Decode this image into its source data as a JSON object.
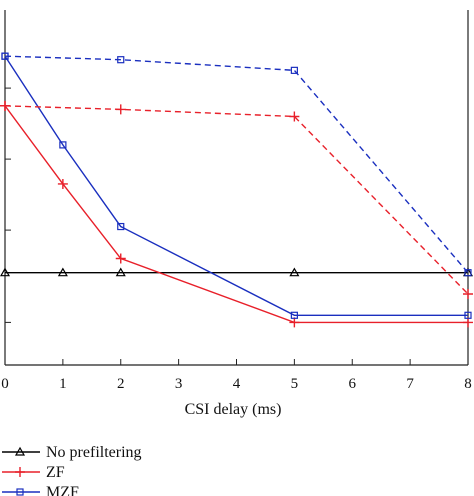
{
  "chart_data": {
    "type": "line",
    "xlabel": "CSI delay (ms)",
    "ylabel": "",
    "title": "",
    "x_ticks": [
      0,
      1,
      2,
      3,
      4,
      5,
      6,
      7,
      8
    ],
    "xlim": [
      0,
      8
    ],
    "ylim": [
      0,
      100
    ],
    "y_tick_values": [
      12,
      38,
      58,
      78
    ],
    "series": [
      {
        "name": "No prefiltering",
        "color": "#000000",
        "marker": "triangle",
        "dash": "solid",
        "points": [
          [
            0,
            26
          ],
          [
            1,
            26
          ],
          [
            2,
            26
          ],
          [
            5,
            26
          ],
          [
            8,
            26
          ]
        ]
      },
      {
        "name": "ZF",
        "color": "#e8202a",
        "marker": "plus",
        "dash": "solid",
        "points": [
          [
            0,
            73
          ],
          [
            1,
            51
          ],
          [
            2,
            30
          ],
          [
            5,
            12
          ],
          [
            8,
            12
          ]
        ]
      },
      {
        "name": "MZF",
        "color": "#1a2fbf",
        "marker": "square",
        "dash": "solid",
        "points": [
          [
            0,
            87
          ],
          [
            1,
            62
          ],
          [
            2,
            39
          ],
          [
            5,
            14
          ],
          [
            8,
            14
          ]
        ]
      },
      {
        "name": "",
        "color": "#e8202a",
        "marker": "plus",
        "dash": "dashed",
        "points": [
          [
            0,
            73
          ],
          [
            2,
            72
          ],
          [
            5,
            70
          ],
          [
            8,
            20
          ]
        ]
      },
      {
        "name": "",
        "color": "#1a2fbf",
        "marker": "square",
        "dash": "dashed",
        "points": [
          [
            0,
            87
          ],
          [
            2,
            86
          ],
          [
            5,
            83
          ],
          [
            8,
            26
          ]
        ]
      }
    ],
    "legend": {
      "position": "bottom-left",
      "entries": [
        "No prefiltering",
        "ZF",
        "MZF"
      ]
    },
    "grid": false
  }
}
